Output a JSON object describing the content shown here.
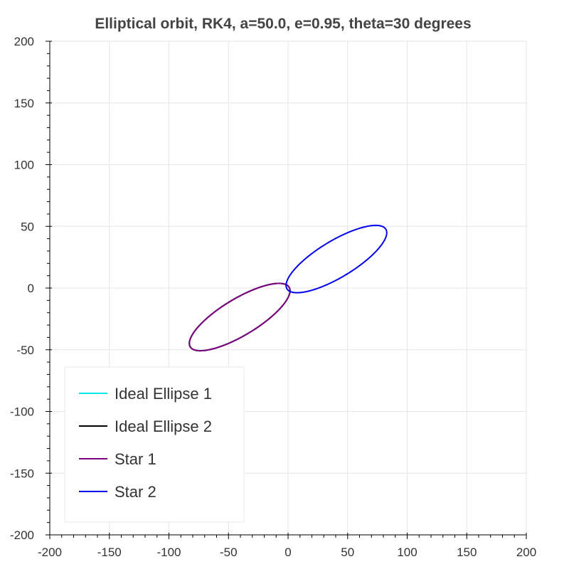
{
  "chart_data": {
    "type": "line",
    "title": "Elliptical orbit, RK4, a=50.0, e=0.95, theta=30 degrees",
    "xlabel": "",
    "ylabel": "",
    "xlim": [
      -200,
      200
    ],
    "ylim": [
      -200,
      200
    ],
    "x_ticks": [
      -200,
      -150,
      -100,
      -50,
      0,
      50,
      100,
      150,
      200
    ],
    "y_ticks": [
      -200,
      -150,
      -100,
      -50,
      0,
      50,
      100,
      150,
      200
    ],
    "x_tick_labels": [
      "-200",
      "-150",
      "-100",
      "-50",
      "0",
      "50",
      "100",
      "150",
      "200"
    ],
    "y_tick_labels": [
      "-200",
      "-150",
      "-100",
      "-50",
      "0",
      "50",
      "100",
      "150",
      "200"
    ],
    "grid": true,
    "legend_position": "bottom-left",
    "series": [
      {
        "name": "Ideal Ellipse 1",
        "color": "#00e5ee",
        "ellipse": {
          "center": [
            -40.6,
            -23.5
          ],
          "semi_major": 48.0,
          "eccentricity": 0.95,
          "angle_deg": 30
        }
      },
      {
        "name": "Ideal Ellipse 2",
        "color": "#000000",
        "ellipse": {
          "center": [
            -40.6,
            -23.5
          ],
          "semi_major": 48.0,
          "eccentricity": 0.95,
          "angle_deg": 30
        }
      },
      {
        "name": "Star 1",
        "color": "#800080",
        "ellipse": {
          "center": [
            -40.6,
            -23.5
          ],
          "semi_major": 48.0,
          "eccentricity": 0.95,
          "angle_deg": 30
        }
      },
      {
        "name": "Star 2",
        "color": "#0000ee",
        "ellipse": {
          "center": [
            40.6,
            23.5
          ],
          "semi_major": 48.0,
          "eccentricity": 0.95,
          "angle_deg": 30
        }
      }
    ]
  }
}
